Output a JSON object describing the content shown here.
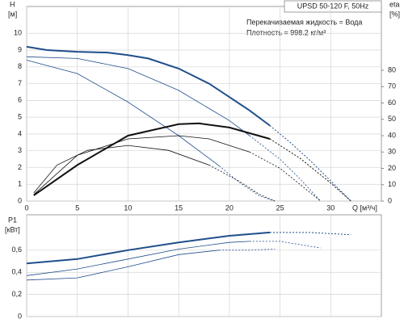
{
  "chart_data": [
    {
      "type": "line",
      "title": "UPSD 50-120 F, 50Hz",
      "annotations": [
        "Перекачиваемая жидкость = Вода",
        "Плотность = 998.2 кг/м³"
      ],
      "ylabel": "H",
      "yunit": "[м]",
      "y2label": "eta",
      "y2unit": "[%]",
      "xlabel": "Q [м³/ч]",
      "xlim": [
        0,
        35
      ],
      "xticks": [
        0,
        5,
        10,
        15,
        20,
        25,
        30
      ],
      "ylim": [
        0,
        11.6
      ],
      "yticks": [
        0,
        1,
        2,
        3,
        4,
        5,
        6,
        7,
        8,
        9,
        10
      ],
      "y2lim": [
        0,
        119
      ],
      "y2ticks": [
        0,
        10,
        20,
        30,
        40,
        50,
        60,
        70,
        80
      ],
      "grid": true,
      "series": [
        {
          "color": "#1f4e8c",
          "width": 2,
          "dash": false,
          "x": [
            0,
            2,
            5,
            8,
            10,
            12,
            15,
            18,
            20,
            22,
            24
          ],
          "values": [
            9.2,
            9.0,
            8.9,
            8.85,
            8.7,
            8.5,
            7.9,
            7.0,
            6.2,
            5.4,
            4.5
          ]
        },
        {
          "color": "#1f4e8c",
          "width": 1,
          "dash": true,
          "x": [
            24,
            26,
            28,
            30,
            32
          ],
          "values": [
            4.5,
            3.5,
            2.4,
            1.2,
            0
          ]
        },
        {
          "color": "#1f4e8c",
          "width": 0.8,
          "dash": false,
          "x": [
            0,
            5,
            10,
            15,
            20,
            22
          ],
          "values": [
            8.6,
            8.5,
            7.9,
            6.6,
            4.8,
            3.9
          ]
        },
        {
          "color": "#1f4e8c",
          "width": 0.8,
          "dash": true,
          "x": [
            22,
            25,
            27,
            29
          ],
          "values": [
            3.9,
            2.5,
            1.3,
            0
          ]
        },
        {
          "color": "#1f4e8c",
          "width": 0.8,
          "dash": false,
          "x": [
            0,
            5,
            10,
            15,
            19
          ],
          "values": [
            8.4,
            7.6,
            5.9,
            3.9,
            2.1
          ]
        },
        {
          "color": "#1f4e8c",
          "width": 0.8,
          "dash": true,
          "x": [
            19,
            21,
            23,
            24.5
          ],
          "values": [
            2.1,
            1.1,
            0.3,
            0
          ]
        },
        {
          "axis": "y2",
          "color": "#111111",
          "width": 2,
          "dash": false,
          "x": [
            0.7,
            5,
            10,
            15,
            17,
            20,
            24
          ],
          "values": [
            3.5,
            22,
            40,
            47,
            47.5,
            45,
            38
          ]
        },
        {
          "axis": "y2",
          "color": "#111111",
          "width": 1,
          "dash": true,
          "x": [
            24,
            27,
            30,
            32
          ],
          "values": [
            38,
            26,
            11,
            0
          ]
        },
        {
          "axis": "y2",
          "color": "#111111",
          "width": 0.8,
          "dash": false,
          "x": [
            0.7,
            5,
            10,
            15,
            18,
            22
          ],
          "values": [
            4,
            28,
            38,
            40,
            38,
            30
          ]
        },
        {
          "axis": "y2",
          "color": "#111111",
          "width": 0.8,
          "dash": true,
          "x": [
            22,
            25,
            27,
            29
          ],
          "values": [
            30,
            20,
            10,
            0
          ]
        },
        {
          "axis": "y2",
          "color": "#111111",
          "width": 0.8,
          "dash": false,
          "x": [
            0.7,
            3,
            6,
            10,
            14,
            18
          ],
          "values": [
            5,
            22,
            31,
            34,
            31,
            22
          ]
        },
        {
          "axis": "y2",
          "color": "#111111",
          "width": 0.8,
          "dash": true,
          "x": [
            18,
            21,
            23,
            24.5
          ],
          "values": [
            22,
            12,
            4,
            0
          ]
        }
      ]
    },
    {
      "type": "line",
      "ylabel": "P1",
      "yunit": "[кВт]",
      "xlim": [
        0,
        35
      ],
      "xticks": [
        0,
        5,
        10,
        15,
        20,
        25,
        30
      ],
      "ylim": [
        0,
        0.92
      ],
      "yticks": [
        0,
        {
          "value": 0.2,
          "label": "0,2"
        },
        {
          "value": 0.4,
          "label": "0,4"
        },
        {
          "value": 0.6,
          "label": "0,6"
        }
      ],
      "grid": true,
      "series": [
        {
          "color": "#1f4e8c",
          "width": 2,
          "dash": false,
          "x": [
            0,
            5,
            10,
            15,
            20,
            24
          ],
          "values": [
            0.48,
            0.52,
            0.6,
            0.67,
            0.73,
            0.76
          ]
        },
        {
          "color": "#1f4e8c",
          "width": 1,
          "dash": true,
          "x": [
            24,
            28,
            32
          ],
          "values": [
            0.76,
            0.76,
            0.74
          ]
        },
        {
          "color": "#1f4e8c",
          "width": 0.8,
          "dash": false,
          "x": [
            0,
            5,
            10,
            15,
            20,
            22
          ],
          "values": [
            0.37,
            0.43,
            0.52,
            0.61,
            0.67,
            0.68
          ]
        },
        {
          "color": "#1f4e8c",
          "width": 0.8,
          "dash": true,
          "x": [
            22,
            25,
            29
          ],
          "values": [
            0.68,
            0.68,
            0.62
          ]
        },
        {
          "color": "#1f4e8c",
          "width": 0.8,
          "dash": false,
          "x": [
            0,
            5,
            10,
            15,
            19
          ],
          "values": [
            0.33,
            0.35,
            0.45,
            0.56,
            0.6
          ]
        },
        {
          "color": "#1f4e8c",
          "width": 0.8,
          "dash": true,
          "x": [
            19,
            22,
            24.5
          ],
          "values": [
            0.6,
            0.6,
            0.61
          ]
        }
      ]
    }
  ]
}
